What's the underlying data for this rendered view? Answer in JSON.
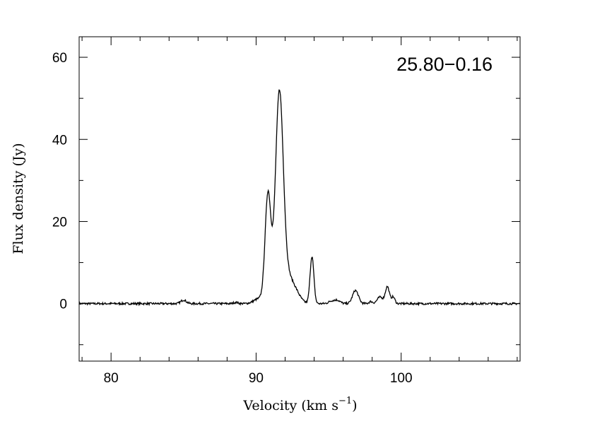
{
  "chart_data": {
    "type": "line",
    "title": "",
    "source_label": "25.80−0.16",
    "xlabel": {
      "prefix": "Velocity (km s",
      "superscript": "−1",
      "suffix": ")"
    },
    "ylabel": "Flux density (Jy)",
    "xlim": [
      77.8,
      108.2
    ],
    "ylim": [
      -14,
      65
    ],
    "xticks_major": [
      80,
      90,
      100
    ],
    "xtick_labels": [
      "80",
      "90",
      "100"
    ],
    "xticks_minor": [
      78,
      82,
      84,
      86,
      88,
      92,
      94,
      96,
      98,
      102,
      104,
      106,
      108
    ],
    "yticks_major": [
      0,
      20,
      40,
      60
    ],
    "ytick_labels": [
      "0",
      "20",
      "40",
      "60"
    ],
    "yticks_minor": [
      -10,
      10,
      30,
      50
    ],
    "grid": false,
    "legend": "none",
    "noise_rms": 0.25,
    "baseline": 0,
    "peaks": [
      {
        "velocity": 85.0,
        "flux": 0.9,
        "width": 0.18
      },
      {
        "velocity": 88.6,
        "flux": 0.3,
        "width": 0.15
      },
      {
        "velocity": 90.2,
        "flux": 1.2,
        "width": 0.35
      },
      {
        "velocity": 90.82,
        "flux": 26.5,
        "width": 0.2
      },
      {
        "velocity": 91.6,
        "flux": 50.5,
        "width": 0.27
      },
      {
        "velocity": 92.15,
        "flux": 5.5,
        "width": 0.35
      },
      {
        "velocity": 92.7,
        "flux": 2.6,
        "width": 0.35
      },
      {
        "velocity": 93.85,
        "flux": 11.5,
        "width": 0.13
      },
      {
        "velocity": 95.2,
        "flux": 0.6,
        "width": 0.2
      },
      {
        "velocity": 95.6,
        "flux": 0.8,
        "width": 0.2
      },
      {
        "velocity": 96.85,
        "flux": 3.2,
        "width": 0.2
      },
      {
        "velocity": 97.9,
        "flux": 0.5,
        "width": 0.12
      },
      {
        "velocity": 98.55,
        "flux": 1.6,
        "width": 0.2
      },
      {
        "velocity": 99.05,
        "flux": 4.1,
        "width": 0.14
      },
      {
        "velocity": 99.45,
        "flux": 1.6,
        "width": 0.12
      }
    ],
    "series": [
      {
        "samples": 900
      }
    ]
  }
}
